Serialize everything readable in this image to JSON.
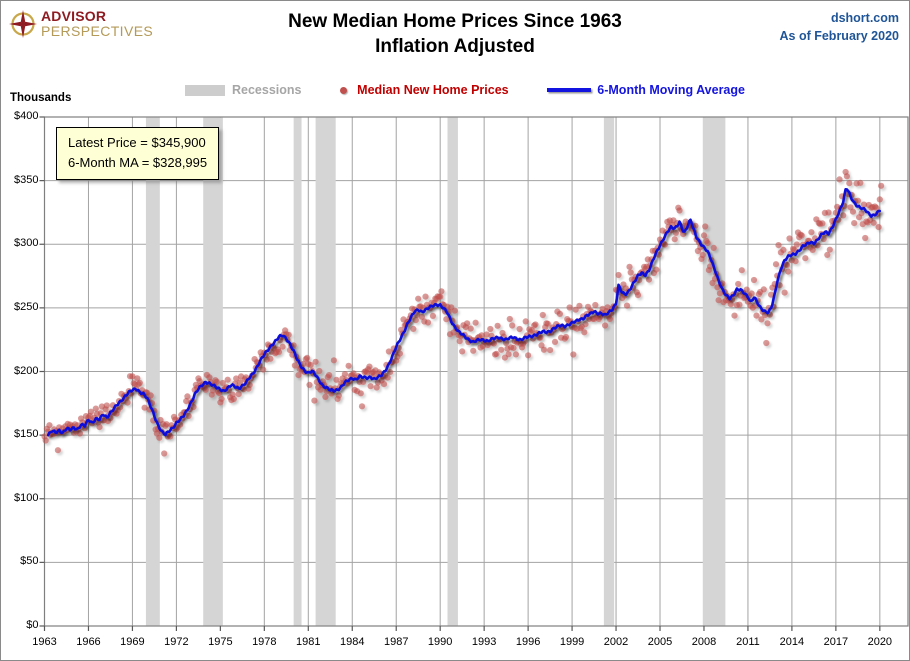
{
  "header": {
    "logo_line1": "ADVISOR",
    "logo_line2": "PERSPECTIVES",
    "title_line1": "New Median Home Prices Since 1963",
    "title_line2": "Inflation Adjusted",
    "source": "dshort.com",
    "as_of": "As of February 2020"
  },
  "ylabel": "Thousands",
  "annotation": {
    "line1": "Latest Price = $345,900",
    "line2": "6-Month MA = $328,995"
  },
  "legend": [
    {
      "label": "Recessions",
      "swatch": "band",
      "color": "#cdcdcd"
    },
    {
      "label": "Median New Home Prices",
      "swatch": "dot",
      "color": "#c0504d"
    },
    {
      "label": "6-Month Moving Average",
      "swatch": "line",
      "color": "#1414e0"
    }
  ],
  "chart_data": {
    "type": "scatter",
    "title": "New Median Home Prices Since 1963 - Inflation Adjusted",
    "xlabel": "",
    "ylabel": "Thousands",
    "units": "thousands of dollars",
    "xlim": [
      1963,
      2022
    ],
    "ylim": [
      0,
      400
    ],
    "grid": true,
    "legend_position": "top",
    "y_ticks": [
      {
        "value": 0,
        "label": "$0"
      },
      {
        "value": 50,
        "label": "$50"
      },
      {
        "value": 100,
        "label": "$100"
      },
      {
        "value": 150,
        "label": "$150"
      },
      {
        "value": 200,
        "label": "$200"
      },
      {
        "value": 250,
        "label": "$250"
      },
      {
        "value": 300,
        "label": "$300"
      },
      {
        "value": 350,
        "label": "$350"
      },
      {
        "value": 400,
        "label": "$400"
      }
    ],
    "x_ticks": [
      {
        "value": 1963,
        "label": "1963"
      },
      {
        "value": 1966,
        "label": "1966"
      },
      {
        "value": 1969,
        "label": "1969"
      },
      {
        "value": 1972,
        "label": "1972"
      },
      {
        "value": 1975,
        "label": "1975"
      },
      {
        "value": 1978,
        "label": "1978"
      },
      {
        "value": 1981,
        "label": "1981"
      },
      {
        "value": 1984,
        "label": "1984"
      },
      {
        "value": 1987,
        "label": "1987"
      },
      {
        "value": 1990,
        "label": "1990"
      },
      {
        "value": 1993,
        "label": "1993"
      },
      {
        "value": 1996,
        "label": "1996"
      },
      {
        "value": 1999,
        "label": "1999"
      },
      {
        "value": 2002,
        "label": "2002"
      },
      {
        "value": 2005,
        "label": "2005"
      },
      {
        "value": 2008,
        "label": "2008"
      },
      {
        "value": 2011,
        "label": "2011"
      },
      {
        "value": 2014,
        "label": "2014"
      },
      {
        "value": 2017,
        "label": "2017"
      },
      {
        "value": 2020,
        "label": "2020"
      }
    ],
    "recessions": [
      [
        1969.92,
        1970.87
      ],
      [
        1973.83,
        1975.17
      ],
      [
        1980.0,
        1980.54
      ],
      [
        1981.5,
        1982.87
      ],
      [
        1990.5,
        1991.21
      ],
      [
        2001.17,
        2001.87
      ],
      [
        2007.92,
        2009.46
      ]
    ],
    "series": [
      {
        "name": "6-Month Moving Average",
        "style": "line",
        "color": "#0d0dda",
        "points": [
          [
            1963.0,
            152
          ],
          [
            1963.25,
            150
          ],
          [
            1963.5,
            153
          ],
          [
            1963.75,
            152
          ],
          [
            1964.0,
            154
          ],
          [
            1964.25,
            152
          ],
          [
            1964.5,
            155
          ],
          [
            1964.75,
            154
          ],
          [
            1965.0,
            156
          ],
          [
            1965.25,
            155
          ],
          [
            1965.5,
            158
          ],
          [
            1965.75,
            157
          ],
          [
            1966.0,
            162
          ],
          [
            1966.25,
            160
          ],
          [
            1966.5,
            163
          ],
          [
            1966.75,
            162
          ],
          [
            1967.0,
            166
          ],
          [
            1967.25,
            164
          ],
          [
            1967.5,
            168
          ],
          [
            1967.75,
            171
          ],
          [
            1968.0,
            174
          ],
          [
            1968.25,
            177
          ],
          [
            1968.5,
            181
          ],
          [
            1968.75,
            184
          ],
          [
            1969.0,
            185
          ],
          [
            1969.25,
            186
          ],
          [
            1969.5,
            184
          ],
          [
            1969.75,
            183
          ],
          [
            1970.0,
            179
          ],
          [
            1970.25,
            172
          ],
          [
            1970.5,
            165
          ],
          [
            1970.75,
            158
          ],
          [
            1971.0,
            153
          ],
          [
            1971.25,
            150
          ],
          [
            1971.5,
            153
          ],
          [
            1971.75,
            156
          ],
          [
            1972.0,
            160
          ],
          [
            1972.25,
            162
          ],
          [
            1972.5,
            165
          ],
          [
            1972.75,
            170
          ],
          [
            1973.0,
            176
          ],
          [
            1973.25,
            182
          ],
          [
            1973.5,
            186
          ],
          [
            1973.75,
            189
          ],
          [
            1974.0,
            192
          ],
          [
            1974.25,
            191
          ],
          [
            1974.5,
            189
          ],
          [
            1974.75,
            187
          ],
          [
            1975.0,
            186
          ],
          [
            1975.25,
            185
          ],
          [
            1975.5,
            187
          ],
          [
            1975.75,
            189
          ],
          [
            1976.0,
            188
          ],
          [
            1976.25,
            187
          ],
          [
            1976.5,
            189
          ],
          [
            1976.75,
            191
          ],
          [
            1977.0,
            195
          ],
          [
            1977.25,
            199
          ],
          [
            1977.5,
            204
          ],
          [
            1977.75,
            209
          ],
          [
            1978.0,
            213
          ],
          [
            1978.25,
            217
          ],
          [
            1978.5,
            221
          ],
          [
            1978.75,
            224
          ],
          [
            1979.0,
            227
          ],
          [
            1979.25,
            228
          ],
          [
            1979.5,
            226
          ],
          [
            1979.75,
            222
          ],
          [
            1980.0,
            216
          ],
          [
            1980.25,
            209
          ],
          [
            1980.5,
            204
          ],
          [
            1980.75,
            201
          ],
          [
            1981.0,
            199
          ],
          [
            1981.25,
            200
          ],
          [
            1981.5,
            197
          ],
          [
            1981.75,
            193
          ],
          [
            1982.0,
            189
          ],
          [
            1982.25,
            187
          ],
          [
            1982.5,
            185
          ],
          [
            1982.75,
            185
          ],
          [
            1983.0,
            186
          ],
          [
            1983.25,
            188
          ],
          [
            1983.5,
            191
          ],
          [
            1983.75,
            193
          ],
          [
            1984.0,
            195
          ],
          [
            1984.25,
            194
          ],
          [
            1984.5,
            196
          ],
          [
            1984.75,
            195
          ],
          [
            1985.0,
            195
          ],
          [
            1985.25,
            196
          ],
          [
            1985.5,
            194
          ],
          [
            1985.75,
            195
          ],
          [
            1986.0,
            197
          ],
          [
            1986.25,
            201
          ],
          [
            1986.5,
            206
          ],
          [
            1986.75,
            212
          ],
          [
            1987.0,
            219
          ],
          [
            1987.25,
            225
          ],
          [
            1987.5,
            231
          ],
          [
            1987.75,
            237
          ],
          [
            1988.0,
            242
          ],
          [
            1988.25,
            247
          ],
          [
            1988.5,
            249
          ],
          [
            1988.75,
            247
          ],
          [
            1989.0,
            248
          ],
          [
            1989.25,
            250
          ],
          [
            1989.5,
            252
          ],
          [
            1989.75,
            253
          ],
          [
            1990.0,
            252
          ],
          [
            1990.25,
            249
          ],
          [
            1990.5,
            246
          ],
          [
            1990.75,
            240
          ],
          [
            1991.0,
            235
          ],
          [
            1991.25,
            231
          ],
          [
            1991.5,
            229
          ],
          [
            1991.75,
            227
          ],
          [
            1992.0,
            225
          ],
          [
            1992.25,
            223
          ],
          [
            1992.5,
            224
          ],
          [
            1992.75,
            225
          ],
          [
            1993.0,
            225
          ],
          [
            1993.25,
            224
          ],
          [
            1993.5,
            225
          ],
          [
            1993.75,
            226
          ],
          [
            1994.0,
            227
          ],
          [
            1994.25,
            226
          ],
          [
            1994.5,
            225
          ],
          [
            1994.75,
            226
          ],
          [
            1995.0,
            227
          ],
          [
            1995.25,
            226
          ],
          [
            1995.5,
            225
          ],
          [
            1995.75,
            226
          ],
          [
            1996.0,
            227
          ],
          [
            1996.25,
            228
          ],
          [
            1996.5,
            229
          ],
          [
            1996.75,
            230
          ],
          [
            1997.0,
            231
          ],
          [
            1997.25,
            231
          ],
          [
            1997.5,
            232
          ],
          [
            1997.75,
            234
          ],
          [
            1998.0,
            235
          ],
          [
            1998.25,
            236
          ],
          [
            1998.5,
            236
          ],
          [
            1998.75,
            237
          ],
          [
            1999.0,
            238
          ],
          [
            1999.25,
            239
          ],
          [
            1999.5,
            241
          ],
          [
            1999.75,
            242
          ],
          [
            2000.0,
            244
          ],
          [
            2000.25,
            245
          ],
          [
            2000.5,
            247
          ],
          [
            2000.75,
            246
          ],
          [
            2001.0,
            246
          ],
          [
            2001.25,
            244
          ],
          [
            2001.5,
            246
          ],
          [
            2001.75,
            249
          ],
          [
            2002.0,
            254
          ],
          [
            2002.17,
            268
          ],
          [
            2002.4,
            262
          ],
          [
            2002.6,
            260
          ],
          [
            2002.8,
            262
          ],
          [
            2003.0,
            266
          ],
          [
            2003.25,
            271
          ],
          [
            2003.5,
            275
          ],
          [
            2003.75,
            277
          ],
          [
            2004.0,
            276
          ],
          [
            2004.25,
            280
          ],
          [
            2004.5,
            287
          ],
          [
            2004.75,
            293
          ],
          [
            2005.0,
            299
          ],
          [
            2005.25,
            305
          ],
          [
            2005.5,
            310
          ],
          [
            2005.75,
            313
          ],
          [
            2006.0,
            312
          ],
          [
            2006.2,
            315
          ],
          [
            2006.35,
            318
          ],
          [
            2006.5,
            313
          ],
          [
            2006.65,
            309
          ],
          [
            2006.8,
            312
          ],
          [
            2007.0,
            317
          ],
          [
            2007.1,
            319
          ],
          [
            2007.25,
            313
          ],
          [
            2007.5,
            306
          ],
          [
            2007.75,
            301
          ],
          [
            2008.0,
            297
          ],
          [
            2008.25,
            294
          ],
          [
            2008.5,
            288
          ],
          [
            2008.75,
            280
          ],
          [
            2009.0,
            271
          ],
          [
            2009.25,
            264
          ],
          [
            2009.5,
            260
          ],
          [
            2009.75,
            258
          ],
          [
            2010.0,
            260
          ],
          [
            2010.25,
            264
          ],
          [
            2010.5,
            264
          ],
          [
            2010.75,
            262
          ],
          [
            2011.0,
            259
          ],
          [
            2011.2,
            254
          ],
          [
            2011.4,
            258
          ],
          [
            2011.6,
            255
          ],
          [
            2011.8,
            251
          ],
          [
            2012.0,
            249
          ],
          [
            2012.2,
            247
          ],
          [
            2012.4,
            246
          ],
          [
            2012.6,
            250
          ],
          [
            2012.8,
            259
          ],
          [
            2013.0,
            271
          ],
          [
            2013.25,
            281
          ],
          [
            2013.5,
            287
          ],
          [
            2013.75,
            290
          ],
          [
            2014.0,
            292
          ],
          [
            2014.25,
            293
          ],
          [
            2014.5,
            295
          ],
          [
            2014.75,
            298
          ],
          [
            2015.0,
            300
          ],
          [
            2015.25,
            302
          ],
          [
            2015.5,
            301
          ],
          [
            2015.75,
            303
          ],
          [
            2016.0,
            307
          ],
          [
            2016.25,
            310
          ],
          [
            2016.5,
            309
          ],
          [
            2016.75,
            313
          ],
          [
            2017.0,
            319
          ],
          [
            2017.25,
            326
          ],
          [
            2017.5,
            334
          ],
          [
            2017.7,
            345
          ],
          [
            2017.85,
            342
          ],
          [
            2018.0,
            337
          ],
          [
            2018.25,
            332
          ],
          [
            2018.5,
            330
          ],
          [
            2018.75,
            329
          ],
          [
            2019.0,
            327
          ],
          [
            2019.2,
            324
          ],
          [
            2019.4,
            322
          ],
          [
            2019.6,
            323
          ],
          [
            2019.8,
            325
          ],
          [
            2020.0,
            327
          ],
          [
            2020.083,
            329
          ]
        ]
      },
      {
        "name": "Median New Home Prices",
        "style": "scatter",
        "color": "#c0504d",
        "frequency": "monthly",
        "derived_from": "6-Month Moving Average anchors plus monthly noise",
        "jitter_seed": 20200212,
        "latest_point": {
          "year": 2020.083,
          "value": 345.9
        }
      }
    ],
    "latest_price_thousands": 345.9,
    "latest_ma_thousands": 328.995
  }
}
